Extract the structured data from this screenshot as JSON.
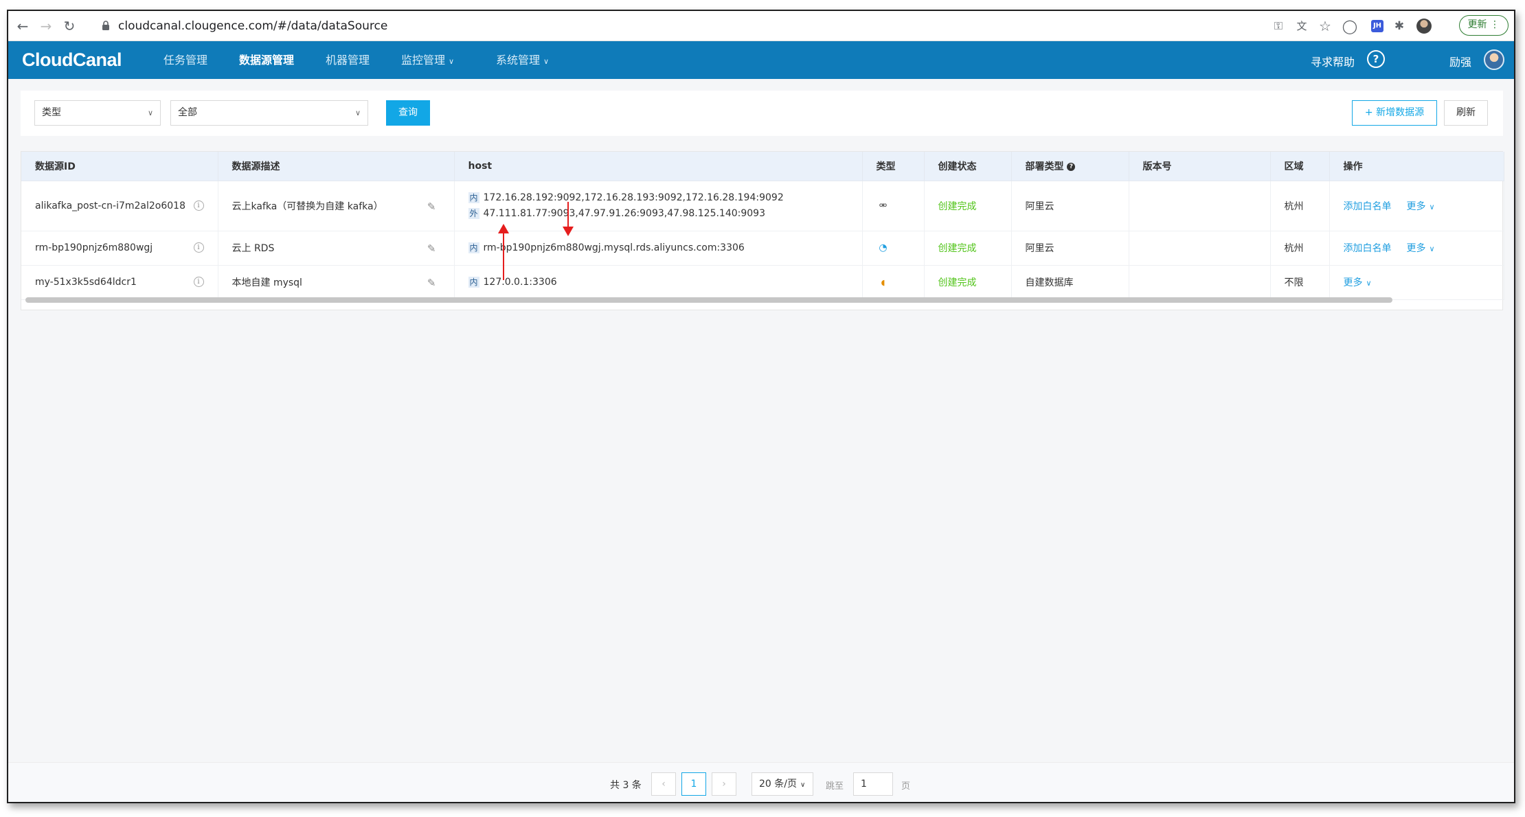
{
  "browser": {
    "url": "cloudcanal.clougence.com/#/data/dataSource",
    "update_label": "更新",
    "ext_jh": "JH"
  },
  "app": {
    "logo": "CloudCanal",
    "nav": [
      {
        "label": "任务管理",
        "dropdown": false
      },
      {
        "label": "数据源管理",
        "dropdown": false,
        "active": true
      },
      {
        "label": "机器管理",
        "dropdown": false
      },
      {
        "label": "监控管理",
        "dropdown": true
      },
      {
        "label": "系统管理",
        "dropdown": true
      }
    ],
    "help": "寻求帮助",
    "user": "励强"
  },
  "filters": {
    "type_select": "类型",
    "all_select": "全部",
    "query_button": "查询",
    "new_button": "+ 新增数据源",
    "refresh_button": "刷新"
  },
  "table": {
    "headers": [
      "数据源ID",
      "数据源描述",
      "host",
      "类型",
      "创建状态",
      "部署类型",
      "版本号",
      "区域",
      "操作"
    ],
    "rows": [
      {
        "id": "alikafka_post-cn-i7m2al2o6018",
        "desc": "云上kafka（可替换为自建 kafka）",
        "host_inner_tag": "内",
        "host_inner": "172.16.28.192:9092,172.16.28.193:9092,172.16.28.194:9092",
        "host_outer_tag": "外",
        "host_outer": "47.111.81.77:9093,47.97.91.26:9093,47.98.125.140:9093",
        "type_icon": "kafka-icon",
        "status": "创建完成",
        "deploy": "阿里云",
        "version": "",
        "region": "杭州",
        "action_whitelist": "添加白名单",
        "action_more": "更多"
      },
      {
        "id": "rm-bp190pnjz6m880wgj",
        "desc": "云上 RDS",
        "host_inner_tag": "内",
        "host_inner": "rm-bp190pnjz6m880wgj.mysql.rds.aliyuncs.com:3306",
        "type_icon": "mysql-dolphin-icon",
        "status": "创建完成",
        "deploy": "阿里云",
        "version": "",
        "region": "杭州",
        "action_whitelist": "添加白名单",
        "action_more": "更多"
      },
      {
        "id": "my-51x3k5sd64ldcr1",
        "desc": "本地自建 mysql",
        "host_inner_tag": "内",
        "host_inner": "127.0.0.1:3306",
        "type_icon": "mysql-icon",
        "status": "创建完成",
        "deploy": "自建数据库",
        "version": "",
        "region": "不限",
        "action_more": "更多"
      }
    ]
  },
  "pagination": {
    "total": "共 3 条",
    "current_page": "1",
    "page_size": "20 条/页",
    "jump_label": "跳至",
    "jump_value": "1",
    "page_unit": "页"
  },
  "colors": {
    "header_bg": "#0f7bb9",
    "primary": "#12a7e6",
    "success": "#52c41a",
    "annotation_arrow": "#e51d1d"
  }
}
